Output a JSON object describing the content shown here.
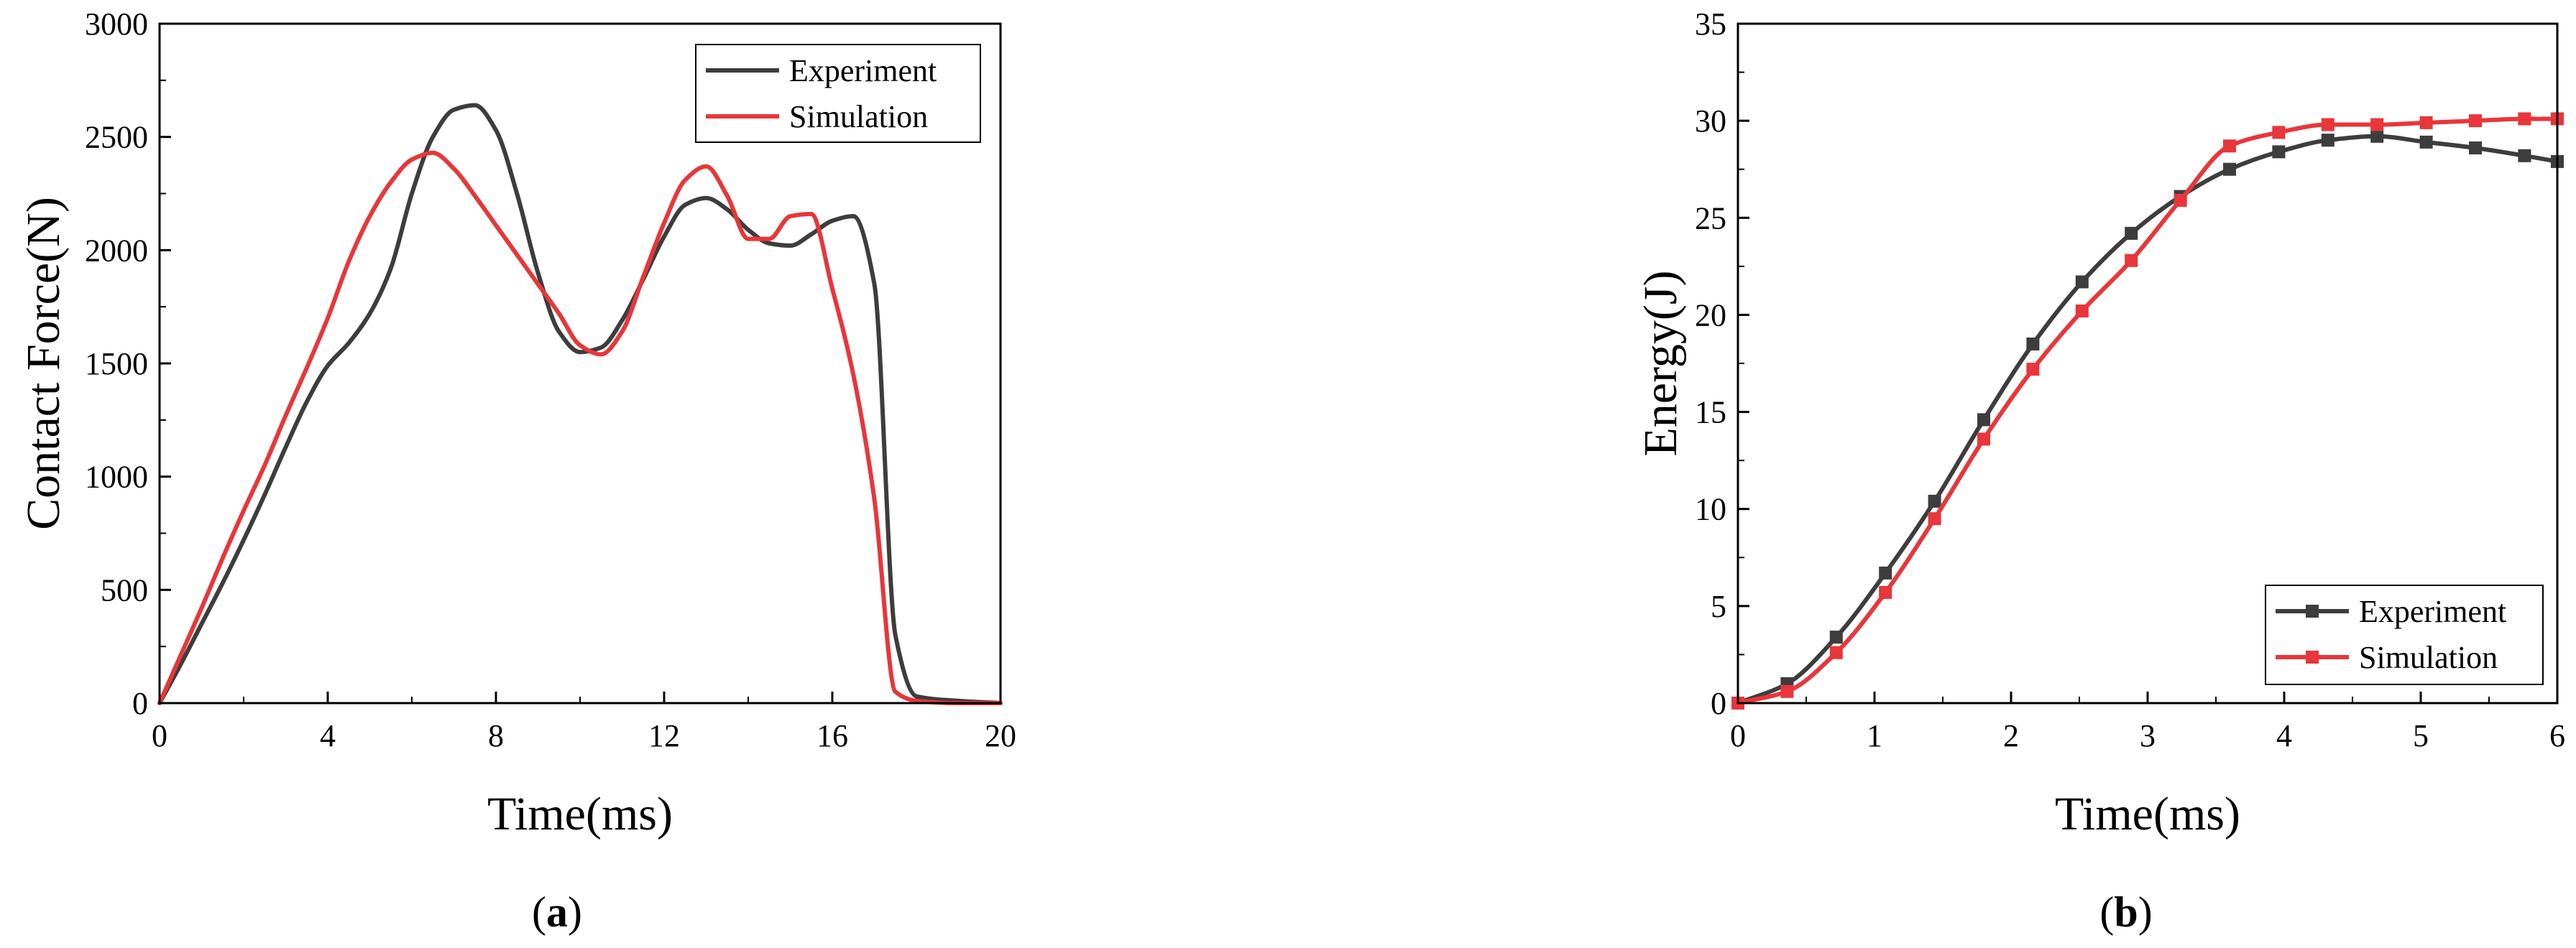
{
  "colors": {
    "experiment": "#3d3d3d",
    "simulation": "#e8363a",
    "axis": "#000000"
  },
  "chart_data": [
    {
      "type": "line",
      "caption_prefix": "(",
      "caption_letter": "a",
      "caption_suffix": ")",
      "xlabel": "Time(ms)",
      "ylabel": "Contact Force(N)",
      "xlim": [
        0,
        20
      ],
      "ylim": [
        0,
        3000
      ],
      "xticks": [
        0,
        4,
        8,
        12,
        16,
        20
      ],
      "yticks": [
        0,
        500,
        1000,
        1500,
        2000,
        2500,
        3000
      ],
      "legend_position": "top-right",
      "series": [
        {
          "name": "Experiment",
          "color": "#3d3d3d",
          "x": [
            0,
            0.5,
            1,
            1.5,
            2,
            2.5,
            3,
            3.5,
            4,
            4.5,
            5,
            5.5,
            6,
            6.5,
            7,
            7.5,
            8,
            8.5,
            9,
            9.5,
            10,
            10.5,
            11,
            11.5,
            12,
            12.5,
            13,
            13.5,
            14,
            14.5,
            15,
            15.5,
            16,
            16.5,
            17,
            17.5,
            18,
            19,
            20
          ],
          "y": [
            0,
            170,
            350,
            530,
            720,
            920,
            1130,
            1330,
            1490,
            1590,
            1720,
            1920,
            2250,
            2500,
            2620,
            2640,
            2530,
            2250,
            1900,
            1640,
            1550,
            1570,
            1690,
            1870,
            2060,
            2200,
            2230,
            2180,
            2090,
            2030,
            2020,
            2070,
            2130,
            2150,
            1850,
            300,
            30,
            10,
            0
          ]
        },
        {
          "name": "Simulation",
          "color": "#e8363a",
          "x": [
            0,
            0.5,
            1,
            1.5,
            2,
            2.5,
            3,
            3.5,
            4,
            4.5,
            5,
            5.5,
            6,
            6.5,
            7,
            7.5,
            8,
            8.5,
            9,
            9.5,
            10,
            10.5,
            11,
            11.5,
            12,
            12.5,
            13,
            13.5,
            14,
            14.5,
            15,
            15.5,
            16,
            16.5,
            17,
            17.5,
            18,
            19,
            20
          ],
          "y": [
            0,
            210,
            420,
            640,
            850,
            1050,
            1270,
            1480,
            1700,
            1950,
            2150,
            2300,
            2400,
            2430,
            2360,
            2240,
            2110,
            1980,
            1850,
            1720,
            1580,
            1540,
            1640,
            1880,
            2120,
            2310,
            2370,
            2240,
            2050,
            2050,
            2150,
            2160,
            1830,
            1450,
            900,
            50,
            10,
            0,
            0
          ]
        }
      ]
    },
    {
      "type": "line",
      "caption_prefix": "(",
      "caption_letter": "b",
      "caption_suffix": ")",
      "xlabel": "Time(ms)",
      "ylabel": "Energy(J)",
      "xlim": [
        0,
        6
      ],
      "ylim": [
        0,
        35
      ],
      "xticks": [
        0,
        1,
        2,
        3,
        4,
        5,
        6
      ],
      "yticks": [
        0,
        5,
        10,
        15,
        20,
        25,
        30,
        35
      ],
      "legend_position": "bottom-right",
      "series": [
        {
          "name": "Experiment",
          "color": "#3d3d3d",
          "x": [
            0,
            0.36,
            0.72,
            1.08,
            1.44,
            1.8,
            2.16,
            2.52,
            2.88,
            3.24,
            3.6,
            3.96,
            4.32,
            4.68,
            5.04,
            5.4,
            5.76,
            6.0
          ],
          "y": [
            0,
            1.0,
            3.4,
            6.7,
            10.4,
            14.6,
            18.5,
            21.7,
            24.2,
            26.1,
            27.5,
            28.4,
            29.0,
            29.2,
            28.9,
            28.6,
            28.2,
            27.9
          ]
        },
        {
          "name": "Simulation",
          "color": "#e8363a",
          "x": [
            0,
            0.36,
            0.72,
            1.08,
            1.44,
            1.8,
            2.16,
            2.52,
            2.88,
            3.24,
            3.6,
            3.96,
            4.32,
            4.68,
            5.04,
            5.4,
            5.76,
            6.0
          ],
          "y": [
            0,
            0.6,
            2.6,
            5.7,
            9.5,
            13.6,
            17.2,
            20.2,
            22.8,
            25.9,
            28.7,
            29.4,
            29.8,
            29.8,
            29.9,
            30.0,
            30.1,
            30.1
          ]
        }
      ]
    }
  ]
}
